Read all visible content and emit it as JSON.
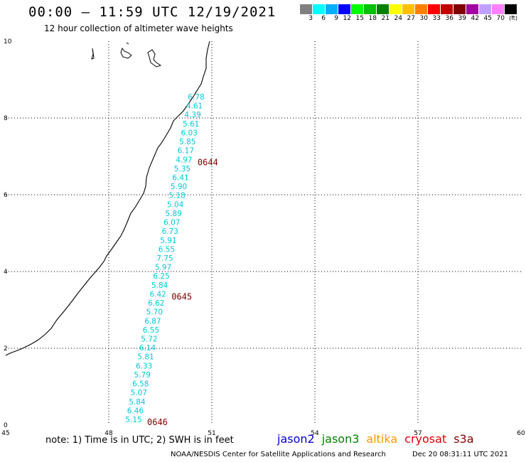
{
  "title": "00:00 – 11:59 UTC 12/19/2021",
  "subtitle": "12 hour collection of altimeter wave heights",
  "legend": {
    "unit": "(ft)",
    "colors": [
      "#808080",
      "#00ffff",
      "#00b0ff",
      "#0000ff",
      "#00ff00",
      "#00c000",
      "#008000",
      "#ffff00",
      "#ffc000",
      "#ff8000",
      "#ff0000",
      "#c00000",
      "#800000",
      "#a000a0",
      "#c0a0ff",
      "#ff80ff",
      "#000000"
    ],
    "labels": [
      "3",
      "6",
      "9",
      "12",
      "15",
      "18",
      "21",
      "24",
      "27",
      "30",
      "33",
      "36",
      "39",
      "42",
      "45",
      "70"
    ]
  },
  "axes": {
    "x_ticks": [
      "45",
      "48",
      "51",
      "54",
      "57",
      "60"
    ],
    "y_ticks": [
      "0",
      "2",
      "4",
      "6",
      "8",
      "10"
    ]
  },
  "track": {
    "color": "#00c8d8",
    "values": [
      "6.78",
      "4.61",
      "4.39",
      "5.61",
      "6.03",
      "5.85",
      "6.17",
      "4.97",
      "5.35",
      "6.41",
      "5.90",
      "5.18",
      "5.04",
      "5.89",
      "6.07",
      "6.73",
      "5.91",
      "6.55",
      "7.75",
      "5.97",
      "6.25",
      "5.84",
      "6.42",
      "6.62",
      "5.70",
      "6.87",
      "6.55",
      "5.72",
      "6.14",
      "5.81",
      "6.33",
      "5.79",
      "6.58",
      "5.07",
      "5.84",
      "6.46",
      "5.15"
    ],
    "times": [
      {
        "label": "0644",
        "after_index": 7
      },
      {
        "label": "0645",
        "after_index": 22
      },
      {
        "label": "0646",
        "after_index": 36
      }
    ],
    "time_color": "#800000"
  },
  "note": "note: 1) Time is in UTC; 2) SWH is in feet",
  "satellites": [
    {
      "name": "jason2",
      "color": "#0000cc"
    },
    {
      "name": "jason3",
      "color": "#008000"
    },
    {
      "name": "altika",
      "color": "#ff9900"
    },
    {
      "name": "cryosat",
      "color": "#dd0000"
    },
    {
      "name": "s3a",
      "color": "#800000"
    }
  ],
  "footer": {
    "credit": "NOAA/NESDIS Center for Satellite Applications and Research",
    "timestamp": "Dec 20 08:31:11 UTC 2021"
  }
}
